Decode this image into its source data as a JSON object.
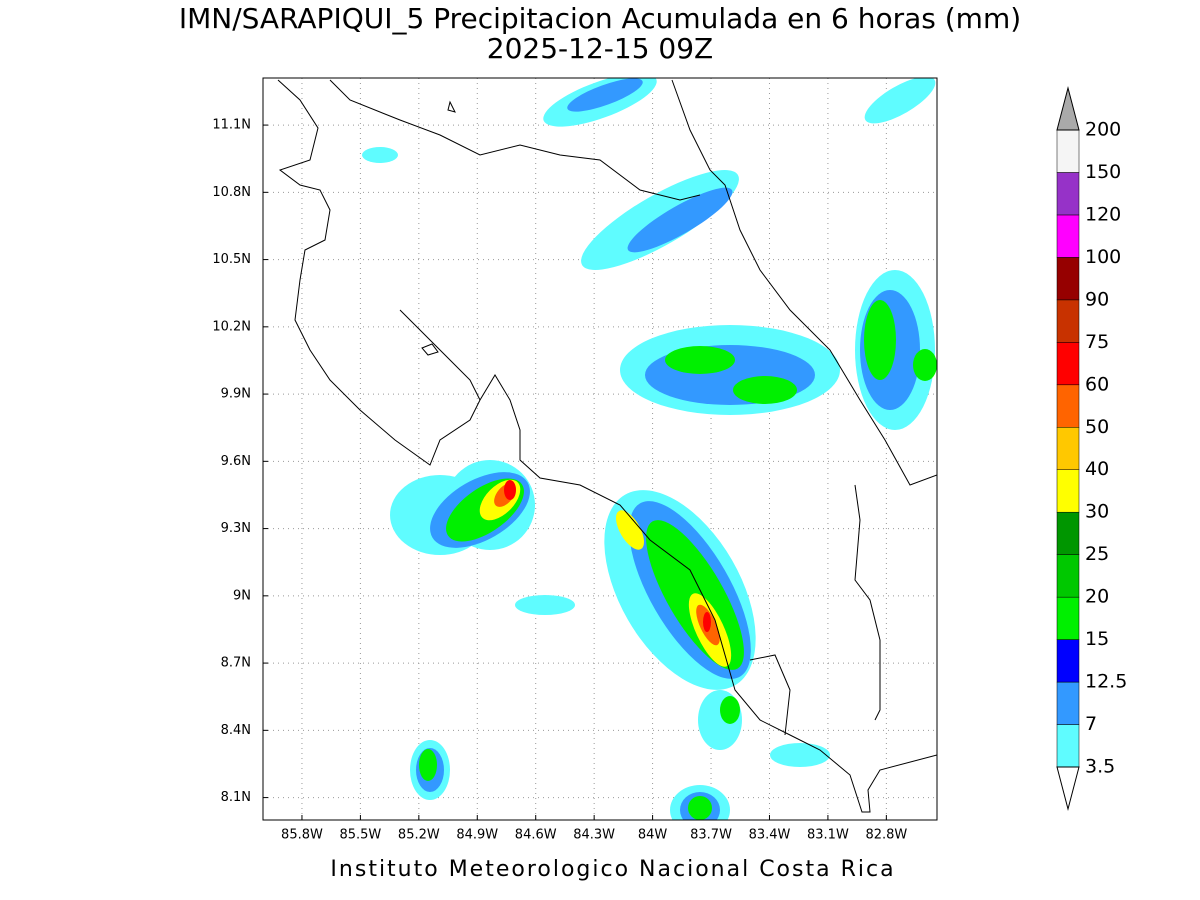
{
  "header": {
    "title": "IMN/SARAPIQUI_5 Precipitacion Acumulada en 6 horas (mm)",
    "subtitle": "2025-12-15 09Z"
  },
  "map": {
    "xlim": [
      -86.0,
      -82.54
    ],
    "ylim": [
      8.0,
      11.31
    ],
    "grid": true,
    "xticks": [
      {
        "value": -85.8,
        "label": "85.8W"
      },
      {
        "value": -85.5,
        "label": "85.5W"
      },
      {
        "value": -85.2,
        "label": "85.2W"
      },
      {
        "value": -84.9,
        "label": "84.9W"
      },
      {
        "value": -84.6,
        "label": "84.6W"
      },
      {
        "value": -84.3,
        "label": "84.3W"
      },
      {
        "value": -84.0,
        "label": "84W"
      },
      {
        "value": -83.7,
        "label": "83.7W"
      },
      {
        "value": -83.4,
        "label": "83.4W"
      },
      {
        "value": -83.1,
        "label": "83.1W"
      },
      {
        "value": -82.8,
        "label": "82.8W"
      }
    ],
    "yticks": [
      {
        "value": 8.1,
        "label": "8.1N"
      },
      {
        "value": 8.4,
        "label": "8.4N"
      },
      {
        "value": 8.7,
        "label": "8.7N"
      },
      {
        "value": 9.0,
        "label": "9N"
      },
      {
        "value": 9.3,
        "label": "9.3N"
      },
      {
        "value": 9.6,
        "label": "9.6N"
      },
      {
        "value": 9.9,
        "label": "9.9N"
      },
      {
        "value": 10.2,
        "label": "10.2N"
      },
      {
        "value": 10.5,
        "label": "10.5N"
      },
      {
        "value": 10.8,
        "label": "10.8N"
      },
      {
        "value": 11.1,
        "label": "11.1N"
      }
    ]
  },
  "colorbar": {
    "levels": [
      3.5,
      7,
      12.5,
      15,
      20,
      25,
      30,
      40,
      50,
      60,
      75,
      90,
      100,
      120,
      150,
      200
    ],
    "colors": [
      "#5ffcff",
      "#3399ff",
      "#0000ff",
      "#00f000",
      "#00c800",
      "#009600",
      "#ffff00",
      "#ffc800",
      "#ff6400",
      "#ff0000",
      "#c83200",
      "#960000",
      "#ff00ff",
      "#9632c8",
      "#f5f5f5"
    ],
    "over_color": "#aaaaaa",
    "under_color": "#ffffff"
  },
  "footer": "Instituto Meteorologico Nacional Costa Rica"
}
